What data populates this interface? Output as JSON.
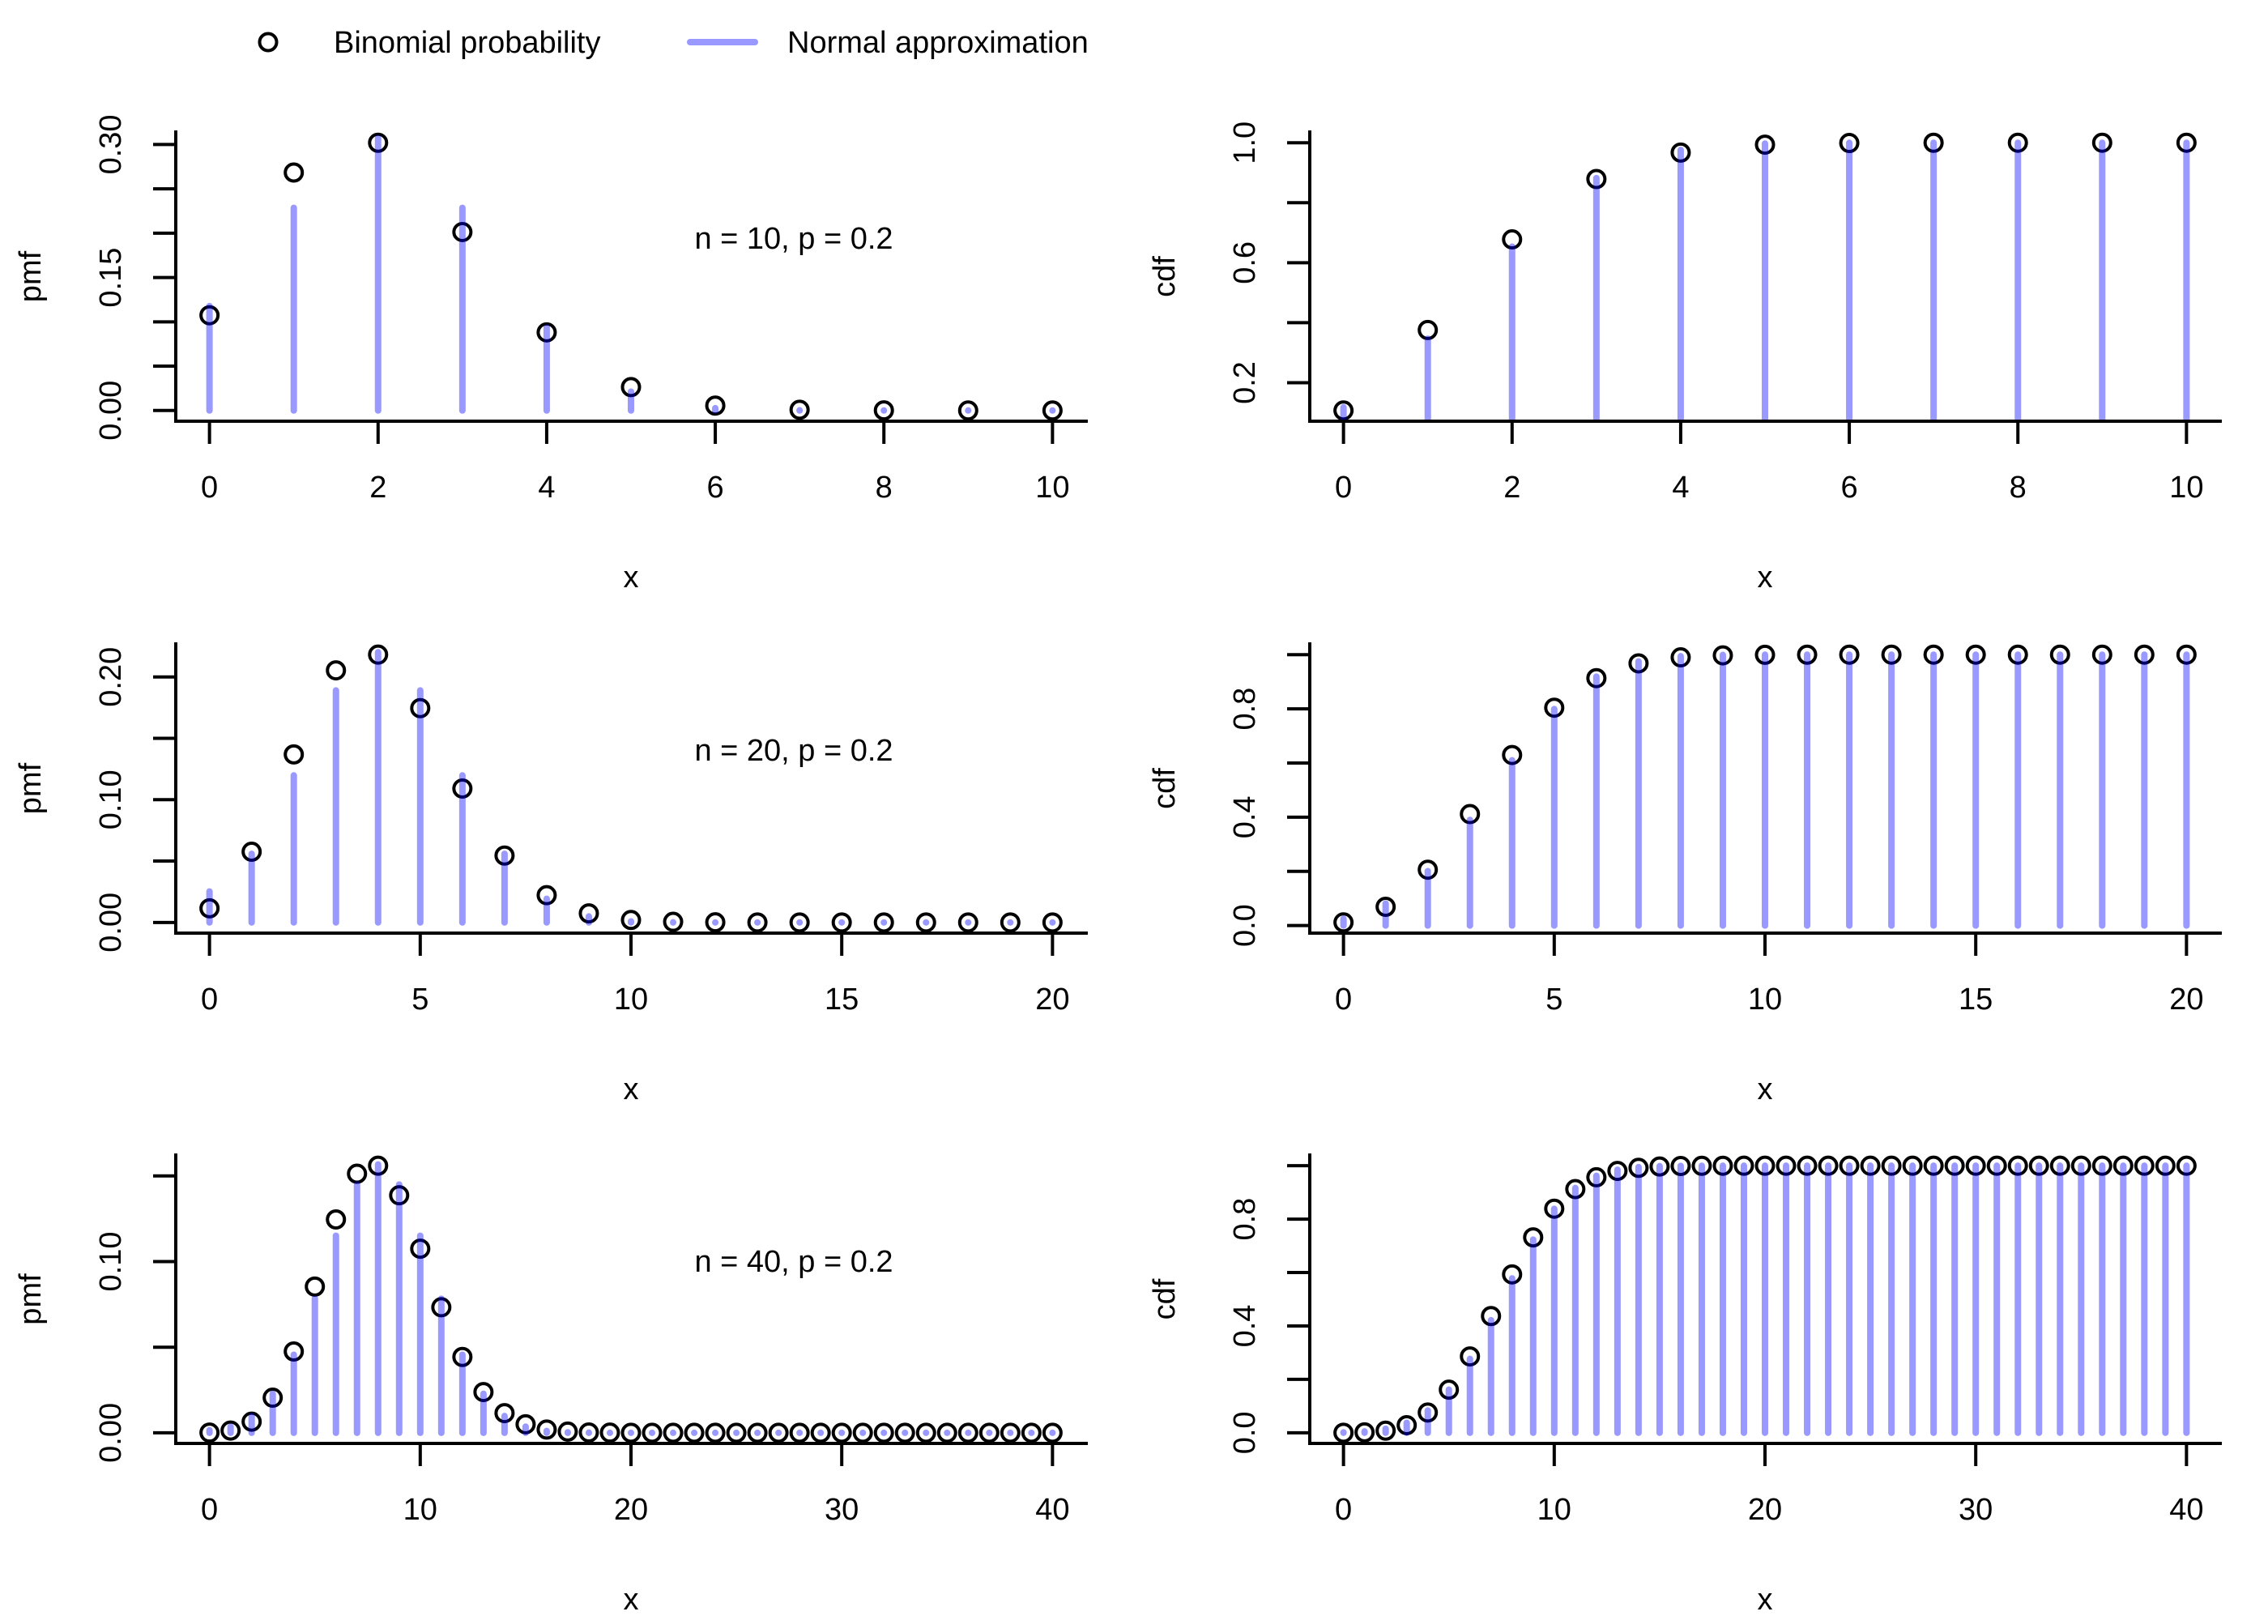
{
  "chart_data": {
    "type": "scatter",
    "legend": {
      "placement": "top",
      "entries": [
        {
          "label": "Binomial probability",
          "marker": "open-circle",
          "color": "#000000"
        },
        {
          "label": "Normal approximation",
          "marker": "line",
          "color": "#9999FF"
        }
      ]
    },
    "colors": {
      "binomial": "#000000",
      "normal": "rgba(0,0,255,0.4)",
      "axis": "#000000"
    },
    "panels": [
      {
        "id": "pmf-n10",
        "row": 0,
        "col": 0,
        "kind": "pmf",
        "annotation": "n = 10, p = 0.2",
        "xlabel": "x",
        "ylabel": "pmf",
        "xlim": [
          -0.4,
          10.4
        ],
        "ylim": [
          -0.0121,
          0.3141
        ],
        "xticks": [
          {
            "v": 0,
            "label": "0"
          },
          {
            "v": 2,
            "label": "2"
          },
          {
            "v": 4,
            "label": "4"
          },
          {
            "v": 6,
            "label": "6"
          },
          {
            "v": 8,
            "label": "8"
          },
          {
            "v": 10,
            "label": "10"
          }
        ],
        "yticks": [
          {
            "v": 0.0,
            "label": "0.00"
          },
          {
            "v": 0.05,
            "label": ""
          },
          {
            "v": 0.1,
            "label": ""
          },
          {
            "v": 0.15,
            "label": "0.15"
          },
          {
            "v": 0.2,
            "label": ""
          },
          {
            "v": 0.25,
            "label": ""
          },
          {
            "v": 0.3,
            "label": "0.30"
          }
        ],
        "x": [
          0,
          1,
          2,
          3,
          4,
          5,
          6,
          7,
          8,
          9,
          10
        ],
        "binomial": [
          0.1074,
          0.2684,
          0.302,
          0.2013,
          0.0881,
          0.0264,
          0.0055,
          0.0008,
          0.0001,
          0.0,
          0.0
        ],
        "normal": [
          0.1178,
          0.2286,
          0.3072,
          0.2286,
          0.0937,
          0.0213,
          0.0026,
          0.0002,
          0.0,
          0.0,
          0.0
        ]
      },
      {
        "id": "cdf-n10",
        "row": 0,
        "col": 1,
        "kind": "cdf",
        "xlabel": "x",
        "ylabel": "cdf",
        "xlim": [
          -0.4,
          10.4
        ],
        "ylim": [
          0.0717,
          1.0357
        ],
        "xticks": [
          {
            "v": 0,
            "label": "0"
          },
          {
            "v": 2,
            "label": "2"
          },
          {
            "v": 4,
            "label": "4"
          },
          {
            "v": 6,
            "label": "6"
          },
          {
            "v": 8,
            "label": "8"
          },
          {
            "v": 10,
            "label": "10"
          }
        ],
        "yticks": [
          {
            "v": 0.2,
            "label": "0.2"
          },
          {
            "v": 0.4,
            "label": ""
          },
          {
            "v": 0.6,
            "label": "0.6"
          },
          {
            "v": 0.8,
            "label": ""
          },
          {
            "v": 1.0,
            "label": "1.0"
          }
        ],
        "x": [
          0,
          1,
          2,
          3,
          4,
          5,
          6,
          7,
          8,
          9,
          10
        ],
        "binomial": [
          0.1074,
          0.3758,
          0.6778,
          0.8791,
          0.9672,
          0.9936,
          0.9991,
          0.9999,
          1.0,
          1.0,
          1.0
        ],
        "normal": [
          0.1178,
          0.3464,
          0.6536,
          0.8822,
          0.9759,
          0.9972,
          0.9998,
          1.0,
          1.0,
          1.0,
          1.0
        ]
      },
      {
        "id": "pmf-n20",
        "row": 1,
        "col": 0,
        "kind": "pmf",
        "annotation": "n = 20, p = 0.2",
        "xlabel": "x",
        "ylabel": "pmf",
        "xlim": [
          -0.8,
          20.8
        ],
        "ylim": [
          -0.0087,
          0.2269
        ],
        "xticks": [
          {
            "v": 0,
            "label": "0"
          },
          {
            "v": 5,
            "label": "5"
          },
          {
            "v": 10,
            "label": "10"
          },
          {
            "v": 15,
            "label": "15"
          },
          {
            "v": 20,
            "label": "20"
          }
        ],
        "yticks": [
          {
            "v": 0.0,
            "label": "0.00"
          },
          {
            "v": 0.05,
            "label": ""
          },
          {
            "v": 0.1,
            "label": "0.10"
          },
          {
            "v": 0.15,
            "label": ""
          },
          {
            "v": 0.2,
            "label": "0.20"
          }
        ],
        "x": [
          0,
          1,
          2,
          3,
          4,
          5,
          6,
          7,
          8,
          9,
          10,
          11,
          12,
          13,
          14,
          15,
          16,
          17,
          18,
          19,
          20
        ],
        "binomial": [
          0.0115,
          0.0576,
          0.1369,
          0.2054,
          0.2182,
          0.1746,
          0.1091,
          0.0545,
          0.0222,
          0.0074,
          0.002,
          0.0005,
          0.0001,
          0.0,
          0.0,
          0.0,
          0.0,
          0.0,
          0.0,
          0.0,
          0.0
        ],
        "normal": [
          0.0252,
          0.0559,
          0.1198,
          0.189,
          0.2202,
          0.189,
          0.1198,
          0.0559,
          0.0193,
          0.0049,
          0.0009,
          0.0001,
          0.0,
          0.0,
          0.0,
          0.0,
          0.0,
          0.0,
          0.0,
          0.0,
          0.0
        ]
      },
      {
        "id": "cdf-n20",
        "row": 1,
        "col": 1,
        "kind": "cdf",
        "xlabel": "x",
        "ylabel": "cdf",
        "xlim": [
          -0.8,
          20.8
        ],
        "ylim": [
          -0.028,
          1.0395
        ],
        "xticks": [
          {
            "v": 0,
            "label": "0"
          },
          {
            "v": 5,
            "label": "5"
          },
          {
            "v": 10,
            "label": "10"
          },
          {
            "v": 15,
            "label": "15"
          },
          {
            "v": 20,
            "label": "20"
          }
        ],
        "yticks": [
          {
            "v": 0.0,
            "label": "0.0"
          },
          {
            "v": 0.2,
            "label": ""
          },
          {
            "v": 0.4,
            "label": "0.4"
          },
          {
            "v": 0.6,
            "label": ""
          },
          {
            "v": 0.8,
            "label": "0.8"
          },
          {
            "v": 1.0,
            "label": ""
          }
        ],
        "x": [
          0,
          1,
          2,
          3,
          4,
          5,
          6,
          7,
          8,
          9,
          10,
          11,
          12,
          13,
          14,
          15,
          16,
          17,
          18,
          19,
          20
        ],
        "binomial": [
          0.0115,
          0.0692,
          0.2061,
          0.4114,
          0.6296,
          0.8042,
          0.9133,
          0.9679,
          0.99,
          0.9974,
          0.9994,
          0.9999,
          1.0,
          1.0,
          1.0,
          1.0,
          1.0,
          1.0,
          1.0,
          1.0,
          1.0
        ],
        "normal": [
          0.0252,
          0.0811,
          0.2009,
          0.3899,
          0.6101,
          0.7991,
          0.9189,
          0.9748,
          0.9941,
          0.999,
          0.9999,
          1.0,
          1.0,
          1.0,
          1.0,
          1.0,
          1.0,
          1.0,
          1.0,
          1.0,
          1.0
        ]
      },
      {
        "id": "pmf-n40",
        "row": 2,
        "col": 0,
        "kind": "pmf",
        "annotation": "n = 40, p = 0.2",
        "xlabel": "x",
        "ylabel": "pmf",
        "xlim": [
          -1.6,
          41.6
        ],
        "ylim": [
          -0.0062,
          0.1622
        ],
        "xticks": [
          {
            "v": 0,
            "label": "0"
          },
          {
            "v": 10,
            "label": "10"
          },
          {
            "v": 20,
            "label": "20"
          },
          {
            "v": 30,
            "label": "30"
          },
          {
            "v": 40,
            "label": "40"
          }
        ],
        "yticks": [
          {
            "v": 0.0,
            "label": "0.00"
          },
          {
            "v": 0.05,
            "label": ""
          },
          {
            "v": 0.1,
            "label": "0.10"
          },
          {
            "v": 0.15,
            "label": ""
          }
        ],
        "x": [
          0,
          1,
          2,
          3,
          4,
          5,
          6,
          7,
          8,
          9,
          10,
          11,
          12,
          13,
          14,
          15,
          16,
          17,
          18,
          19,
          20,
          21,
          22,
          23,
          24,
          25,
          26,
          27,
          28,
          29,
          30,
          31,
          32,
          33,
          34,
          35,
          36,
          37,
          38,
          39,
          40
        ],
        "binomial": [
          0.0001,
          0.0013,
          0.0065,
          0.0205,
          0.0475,
          0.0854,
          0.1246,
          0.1513,
          0.156,
          0.1387,
          0.1075,
          0.0733,
          0.0443,
          0.0238,
          0.0115,
          0.005,
          0.0019,
          0.0007,
          0.0002,
          0.0001,
          0.0,
          0.0,
          0.0,
          0.0,
          0.0,
          0.0,
          0.0,
          0.0,
          0.0,
          0.0,
          0.0,
          0.0,
          0.0,
          0.0,
          0.0,
          0.0,
          0.0,
          0.0,
          0.0,
          0.0,
          0.0
        ],
        "normal": [
          0.0015,
          0.0036,
          0.0098,
          0.0228,
          0.0456,
          0.0783,
          0.1151,
          0.145,
          0.1567,
          0.145,
          0.1151,
          0.0783,
          0.0456,
          0.0228,
          0.0098,
          0.0036,
          0.0011,
          0.0003,
          0.0001,
          0.0,
          0.0,
          0.0,
          0.0,
          0.0,
          0.0,
          0.0,
          0.0,
          0.0,
          0.0,
          0.0,
          0.0,
          0.0,
          0.0,
          0.0,
          0.0,
          0.0,
          0.0,
          0.0,
          0.0,
          0.0,
          0.0
        ]
      },
      {
        "id": "cdf-n40",
        "row": 2,
        "col": 1,
        "kind": "cdf",
        "xlabel": "x",
        "ylabel": "cdf",
        "xlim": [
          -1.6,
          41.6
        ],
        "ylim": [
          -0.0399,
          1.04
        ],
        "xticks": [
          {
            "v": 0,
            "label": "0"
          },
          {
            "v": 10,
            "label": "10"
          },
          {
            "v": 20,
            "label": "20"
          },
          {
            "v": 30,
            "label": "30"
          },
          {
            "v": 40,
            "label": "40"
          }
        ],
        "yticks": [
          {
            "v": 0.0,
            "label": "0.0"
          },
          {
            "v": 0.2,
            "label": ""
          },
          {
            "v": 0.4,
            "label": "0.4"
          },
          {
            "v": 0.6,
            "label": ""
          },
          {
            "v": 0.8,
            "label": "0.8"
          },
          {
            "v": 1.0,
            "label": ""
          }
        ],
        "x": [
          0,
          1,
          2,
          3,
          4,
          5,
          6,
          7,
          8,
          9,
          10,
          11,
          12,
          13,
          14,
          15,
          16,
          17,
          18,
          19,
          20,
          21,
          22,
          23,
          24,
          25,
          26,
          27,
          28,
          29,
          30,
          31,
          32,
          33,
          34,
          35,
          36,
          37,
          38,
          39,
          40
        ],
        "binomial": [
          0.0001,
          0.0015,
          0.0079,
          0.0285,
          0.0759,
          0.1613,
          0.2859,
          0.4371,
          0.5931,
          0.7318,
          0.8392,
          0.9125,
          0.9568,
          0.9806,
          0.9921,
          0.9971,
          0.999,
          0.9997,
          0.9999,
          1.0,
          1.0,
          1.0,
          1.0,
          1.0,
          1.0,
          1.0,
          1.0,
          1.0,
          1.0,
          1.0,
          1.0,
          1.0,
          1.0,
          1.0,
          1.0,
          1.0,
          1.0,
          1.0,
          1.0,
          1.0,
          1.0
        ],
        "normal": [
          0.0015,
          0.0051,
          0.0149,
          0.0376,
          0.0833,
          0.1615,
          0.2766,
          0.4217,
          0.5783,
          0.7234,
          0.8385,
          0.9167,
          0.9624,
          0.9852,
          0.9949,
          0.9985,
          0.9996,
          0.9999,
          1.0,
          1.0,
          1.0,
          1.0,
          1.0,
          1.0,
          1.0,
          1.0,
          1.0,
          1.0,
          1.0,
          1.0,
          1.0,
          1.0,
          1.0,
          1.0,
          1.0,
          1.0,
          1.0,
          1.0,
          1.0,
          1.0,
          1.0
        ]
      }
    ]
  }
}
